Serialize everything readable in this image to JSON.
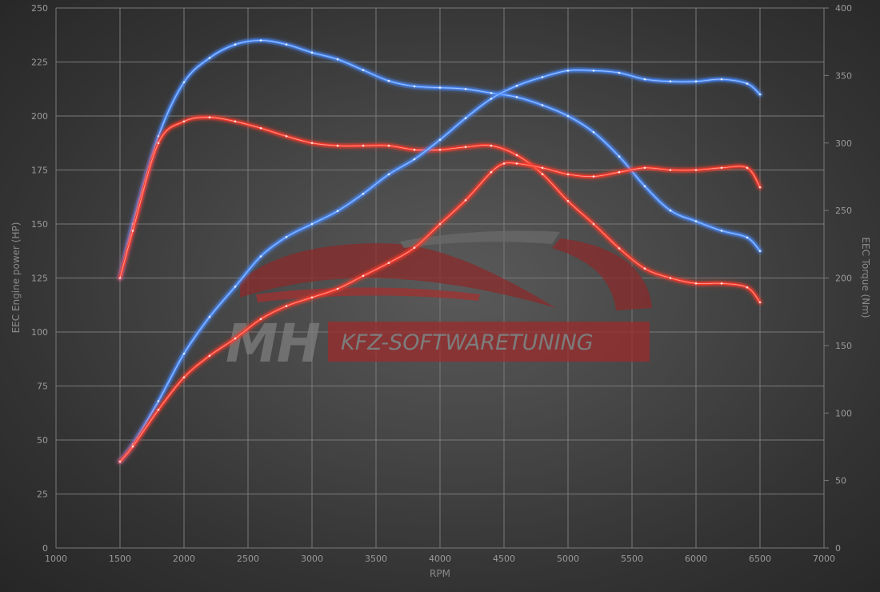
{
  "colors": {
    "tuned": "#ff3a2a",
    "stock": "#4a8cff",
    "grid": "#7a7a7a",
    "tick": "#9a9a9a",
    "watermark_red": "#9c2b2b"
  },
  "watermark": {
    "mh": "MH",
    "company": "KFZ-SOFTWARETUNING"
  },
  "chart_data": {
    "type": "line",
    "title": "",
    "xlabel": "RPM",
    "ylabel": "EEC Engine power (HP)",
    "y2label": "EEC Torque (Nm)",
    "xlim": [
      1000,
      7000
    ],
    "ylim": [
      0,
      250
    ],
    "y2lim": [
      0,
      400
    ],
    "grid": true,
    "legend": "none",
    "x_ticks": [
      1000,
      1500,
      2000,
      2500,
      3000,
      3500,
      4000,
      4500,
      5000,
      5500,
      6000,
      6500,
      7000
    ],
    "y_ticks": [
      0,
      25,
      50,
      75,
      100,
      125,
      150,
      175,
      200,
      225,
      250
    ],
    "y2_ticks": [
      0,
      50,
      100,
      150,
      200,
      250,
      300,
      350,
      400
    ],
    "series": [
      {
        "axis": "right",
        "color": "stock",
        "x": [
          1500,
          1600,
          1800,
          2000,
          2200,
          2400,
          2600,
          2800,
          3000,
          3200,
          3400,
          3600,
          3800,
          4000,
          4200,
          4400,
          4600,
          4800,
          5000,
          5200,
          5400,
          5600,
          5800,
          6000,
          6200,
          6400,
          6500
        ],
        "values": [
          200,
          240,
          305,
          345,
          363,
          373,
          376,
          373,
          367,
          362,
          354,
          346,
          342,
          341,
          340,
          337,
          334,
          328,
          320,
          308,
          290,
          268,
          250,
          242,
          235,
          230,
          220
        ]
      },
      {
        "axis": "right",
        "color": "tuned",
        "x": [
          1500,
          1600,
          1800,
          2000,
          2200,
          2400,
          2600,
          2800,
          3000,
          3200,
          3400,
          3600,
          3800,
          4000,
          4200,
          4400,
          4600,
          4800,
          5000,
          5200,
          5400,
          5600,
          5800,
          6000,
          6200,
          6400,
          6500
        ],
        "values": [
          200,
          235,
          300,
          316,
          319,
          316,
          311,
          305,
          300,
          298,
          298,
          298,
          295,
          295,
          297,
          298,
          291,
          277,
          257,
          240,
          222,
          207,
          200,
          196,
          196,
          193,
          182
        ]
      },
      {
        "axis": "left",
        "color": "stock",
        "x": [
          1500,
          1600,
          1800,
          2000,
          2200,
          2400,
          2600,
          2800,
          3000,
          3200,
          3400,
          3600,
          3800,
          4000,
          4200,
          4400,
          4600,
          4800,
          5000,
          5200,
          5400,
          5600,
          5800,
          6000,
          6200,
          6400,
          6500
        ],
        "values": [
          40,
          48,
          68,
          90,
          107,
          121,
          135,
          144,
          150,
          156,
          164,
          173,
          180,
          189,
          199,
          208,
          214,
          218,
          221,
          221,
          220,
          217,
          216,
          216,
          217,
          215,
          210
        ]
      },
      {
        "axis": "left",
        "color": "tuned",
        "x": [
          1500,
          1600,
          1800,
          2000,
          2200,
          2400,
          2600,
          2800,
          3000,
          3200,
          3400,
          3600,
          3800,
          4000,
          4200,
          4400,
          4500,
          4600,
          4800,
          5000,
          5200,
          5400,
          5600,
          5800,
          6000,
          6200,
          6400,
          6500
        ],
        "values": [
          40,
          47,
          64,
          79,
          89,
          97,
          106,
          112,
          116,
          120,
          126,
          132,
          139,
          150,
          161,
          174,
          178,
          178,
          176,
          173,
          172,
          174,
          176,
          175,
          175,
          176,
          176,
          167
        ]
      }
    ]
  }
}
